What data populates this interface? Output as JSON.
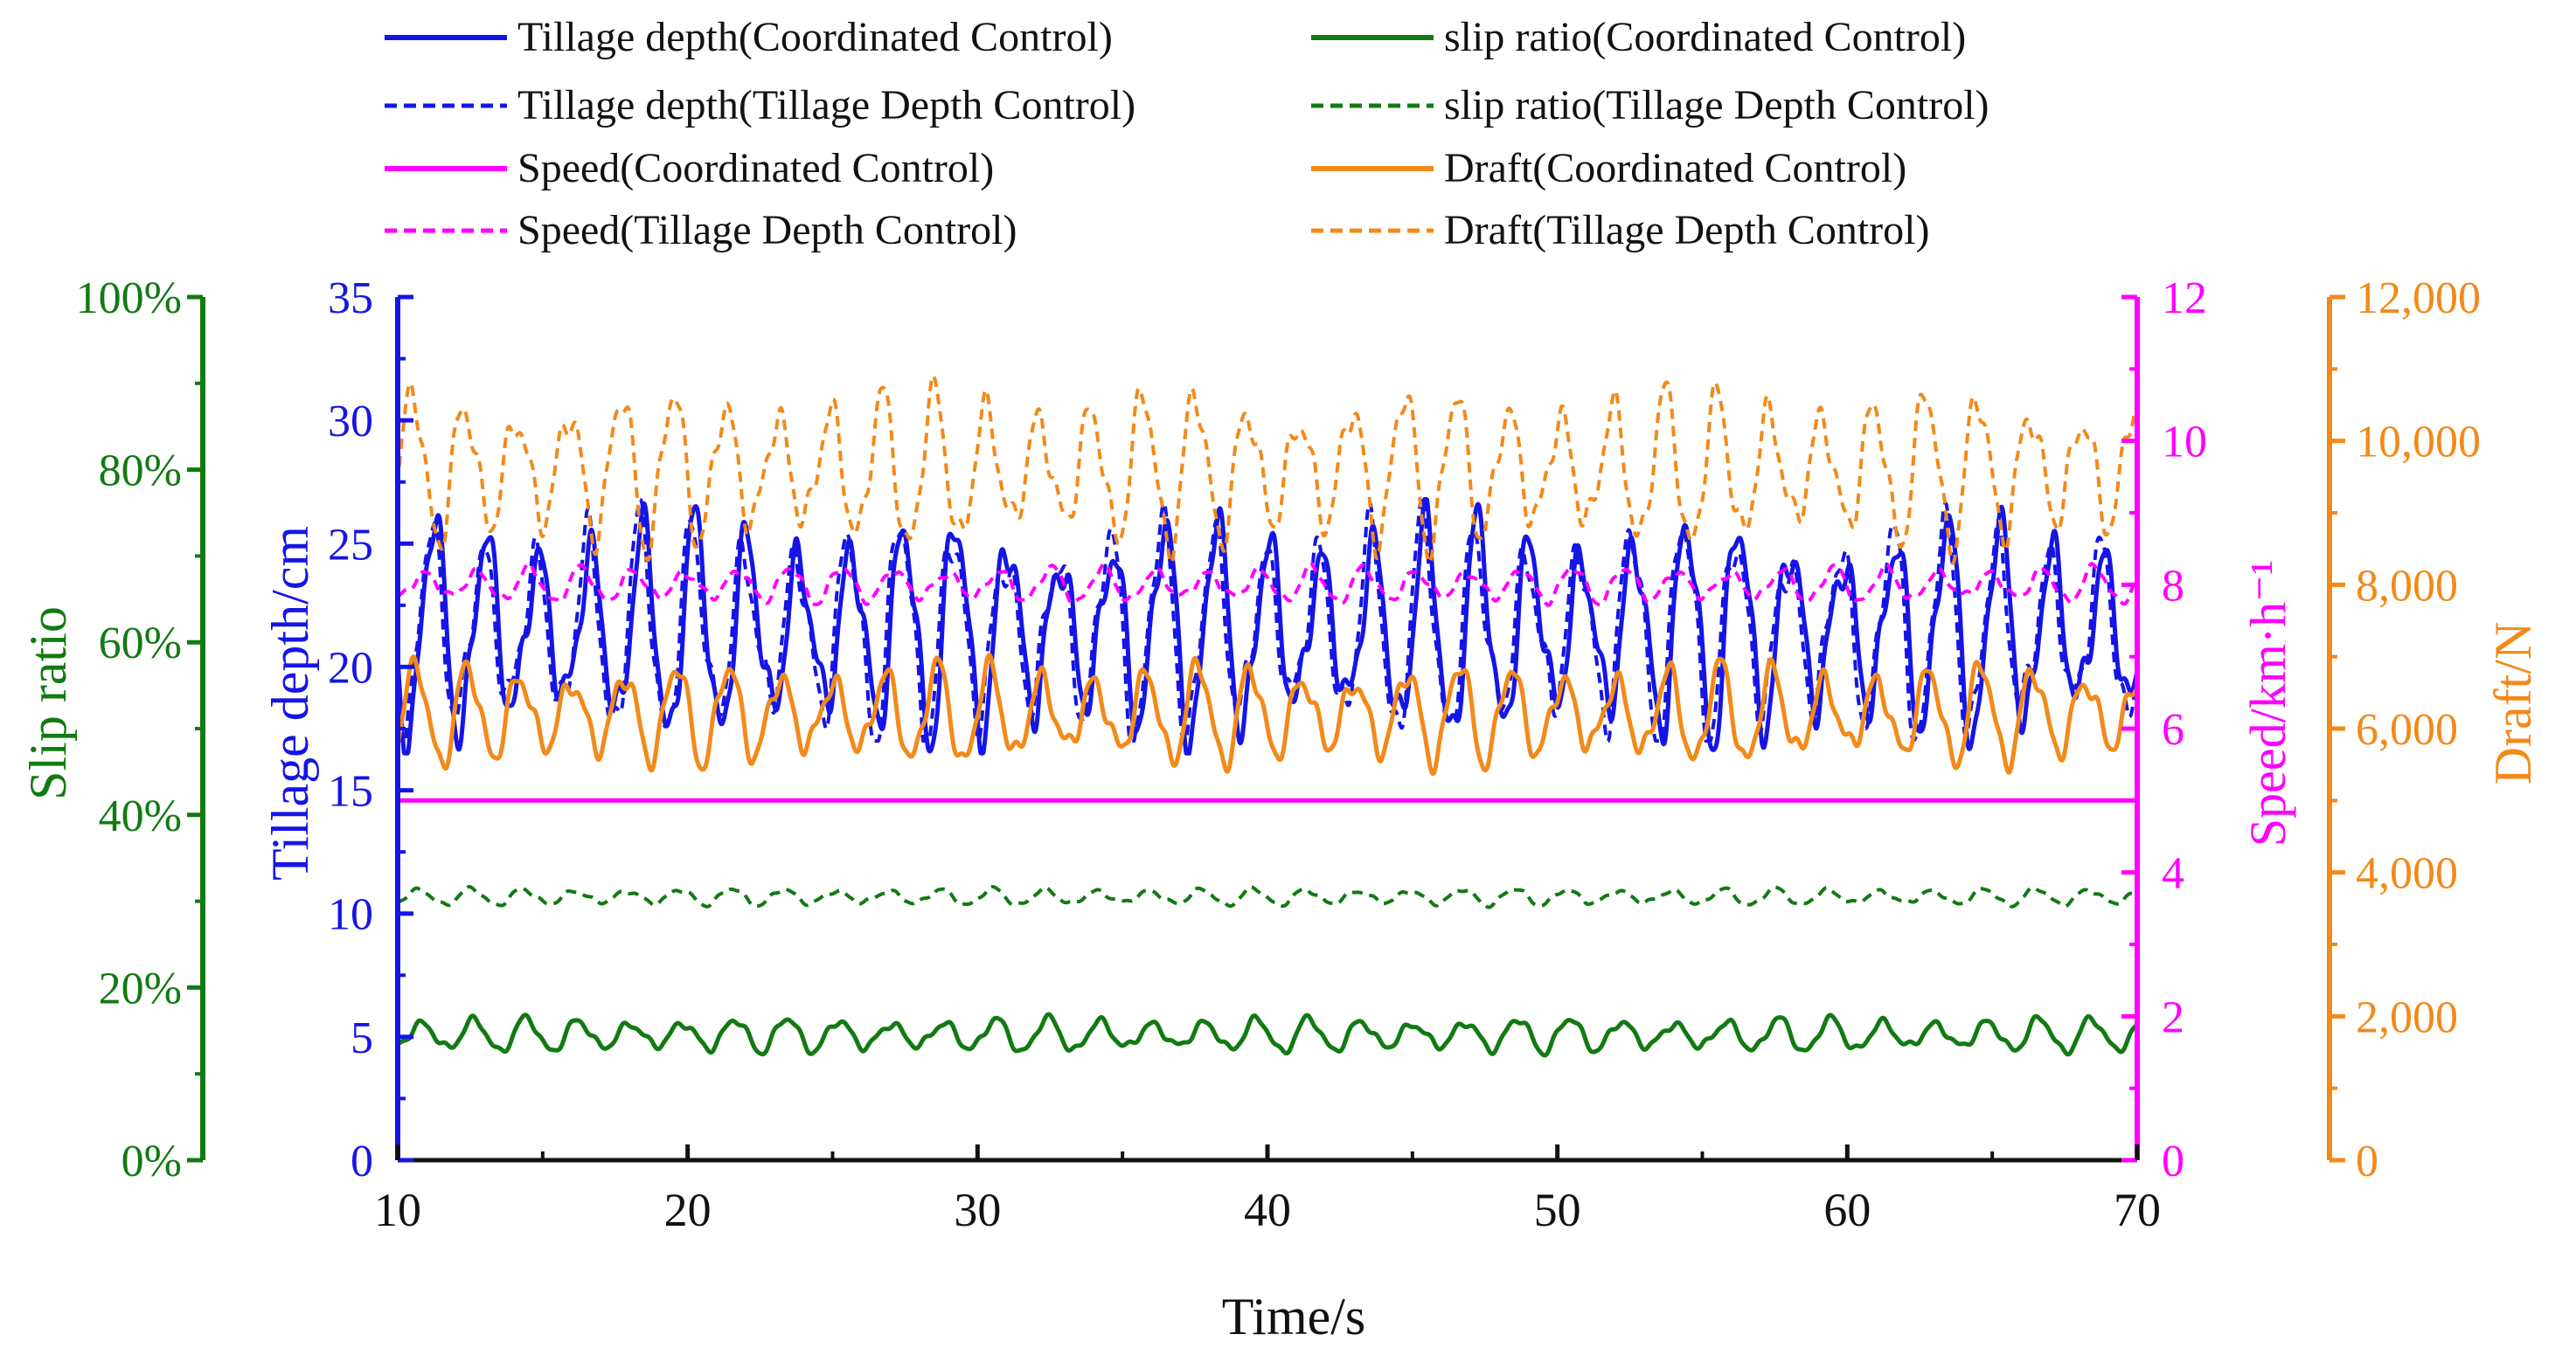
{
  "colors": {
    "tillage": "#1515e6",
    "slip": "#127a12",
    "speed": "#ff00ff",
    "draft": "#f28a1a",
    "axis_black": "#111111"
  },
  "legend": {
    "tillage_cc": "Tillage depth(Coordinated Control)",
    "tillage_tdc": "Tillage depth(Tillage Depth Control)",
    "speed_cc": "Speed(Coordinated Control)",
    "speed_tdc": "Speed(Tillage Depth Control)",
    "slip_cc": "slip ratio(Coordinated Control)",
    "slip_tdc": "slip ratio(Tillage Depth Control)",
    "draft_cc": "Draft(Coordinated Control)",
    "draft_tdc": "Draft(Tillage Depth Control)"
  },
  "chart_data": {
    "type": "line",
    "xlabel": "Time/s",
    "x_range": [
      10,
      70
    ],
    "x_ticks": [
      "10",
      "20",
      "30",
      "40",
      "50",
      "60",
      "70"
    ],
    "axes": {
      "slip": {
        "label": "Slip ratio",
        "range": [
          0,
          100
        ],
        "unit": "%",
        "ticks": [
          "0%",
          "20%",
          "40%",
          "60%",
          "80%",
          "100%"
        ]
      },
      "tillage": {
        "label": "Tillage depth/cm",
        "range": [
          0,
          35
        ],
        "ticks": [
          "0",
          "5",
          "10",
          "15",
          "20",
          "25",
          "30",
          "35"
        ]
      },
      "speed": {
        "label": "Speed/km·h⁻¹",
        "range": [
          0,
          12
        ],
        "ticks": [
          "0",
          "2",
          "4",
          "6",
          "8",
          "10",
          "12"
        ]
      },
      "draft": {
        "label": "Draft/N",
        "range": [
          0,
          12000
        ],
        "ticks": [
          "0",
          "2,000",
          "4,000",
          "6,000",
          "8,000",
          "10,000",
          "12,000"
        ]
      }
    },
    "series": [
      {
        "name": "Tillage depth(Coordinated Control)",
        "axis": "tillage",
        "style": "solid",
        "mean": 21.5,
        "amplitude": 4.5,
        "period_s": 1.8,
        "range": [
          16.5,
          26.8
        ]
      },
      {
        "name": "Tillage depth(Tillage Depth Control)",
        "axis": "tillage",
        "style": "dashed",
        "mean": 21.5,
        "amplitude": 4.5,
        "period_s": 1.8,
        "range": [
          17.0,
          27.0
        ]
      },
      {
        "name": "Speed(Coordinated Control)",
        "axis": "speed",
        "style": "solid",
        "constant": 5.0
      },
      {
        "name": "Speed(Tillage Depth Control)",
        "axis": "speed",
        "style": "dashed",
        "mean": 8.0,
        "amplitude": 0.25,
        "period_s": 1.8,
        "range": [
          7.7,
          8.4
        ]
      },
      {
        "name": "slip ratio(Coordinated Control)",
        "axis": "slip",
        "style": "solid",
        "mean": 14.5,
        "amplitude": 2.0,
        "period_s": 1.8,
        "range": [
          11.5,
          18.5
        ]
      },
      {
        "name": "slip ratio(Tillage Depth Control)",
        "axis": "slip",
        "style": "dashed",
        "mean": 30.5,
        "amplitude": 1.0,
        "period_s": 1.8,
        "range": [
          29.0,
          32.5
        ]
      },
      {
        "name": "Draft(Coordinated Control)",
        "axis": "draft",
        "style": "solid",
        "mean": 6200,
        "amplitude": 700,
        "period_s": 1.8,
        "range": [
          5100,
          7450
        ]
      },
      {
        "name": "Draft(Tillage Depth Control)",
        "axis": "draft",
        "style": "dashed",
        "mean": 9600,
        "amplitude": 1100,
        "period_s": 1.8,
        "range": [
          8300,
          11100
        ]
      }
    ]
  }
}
